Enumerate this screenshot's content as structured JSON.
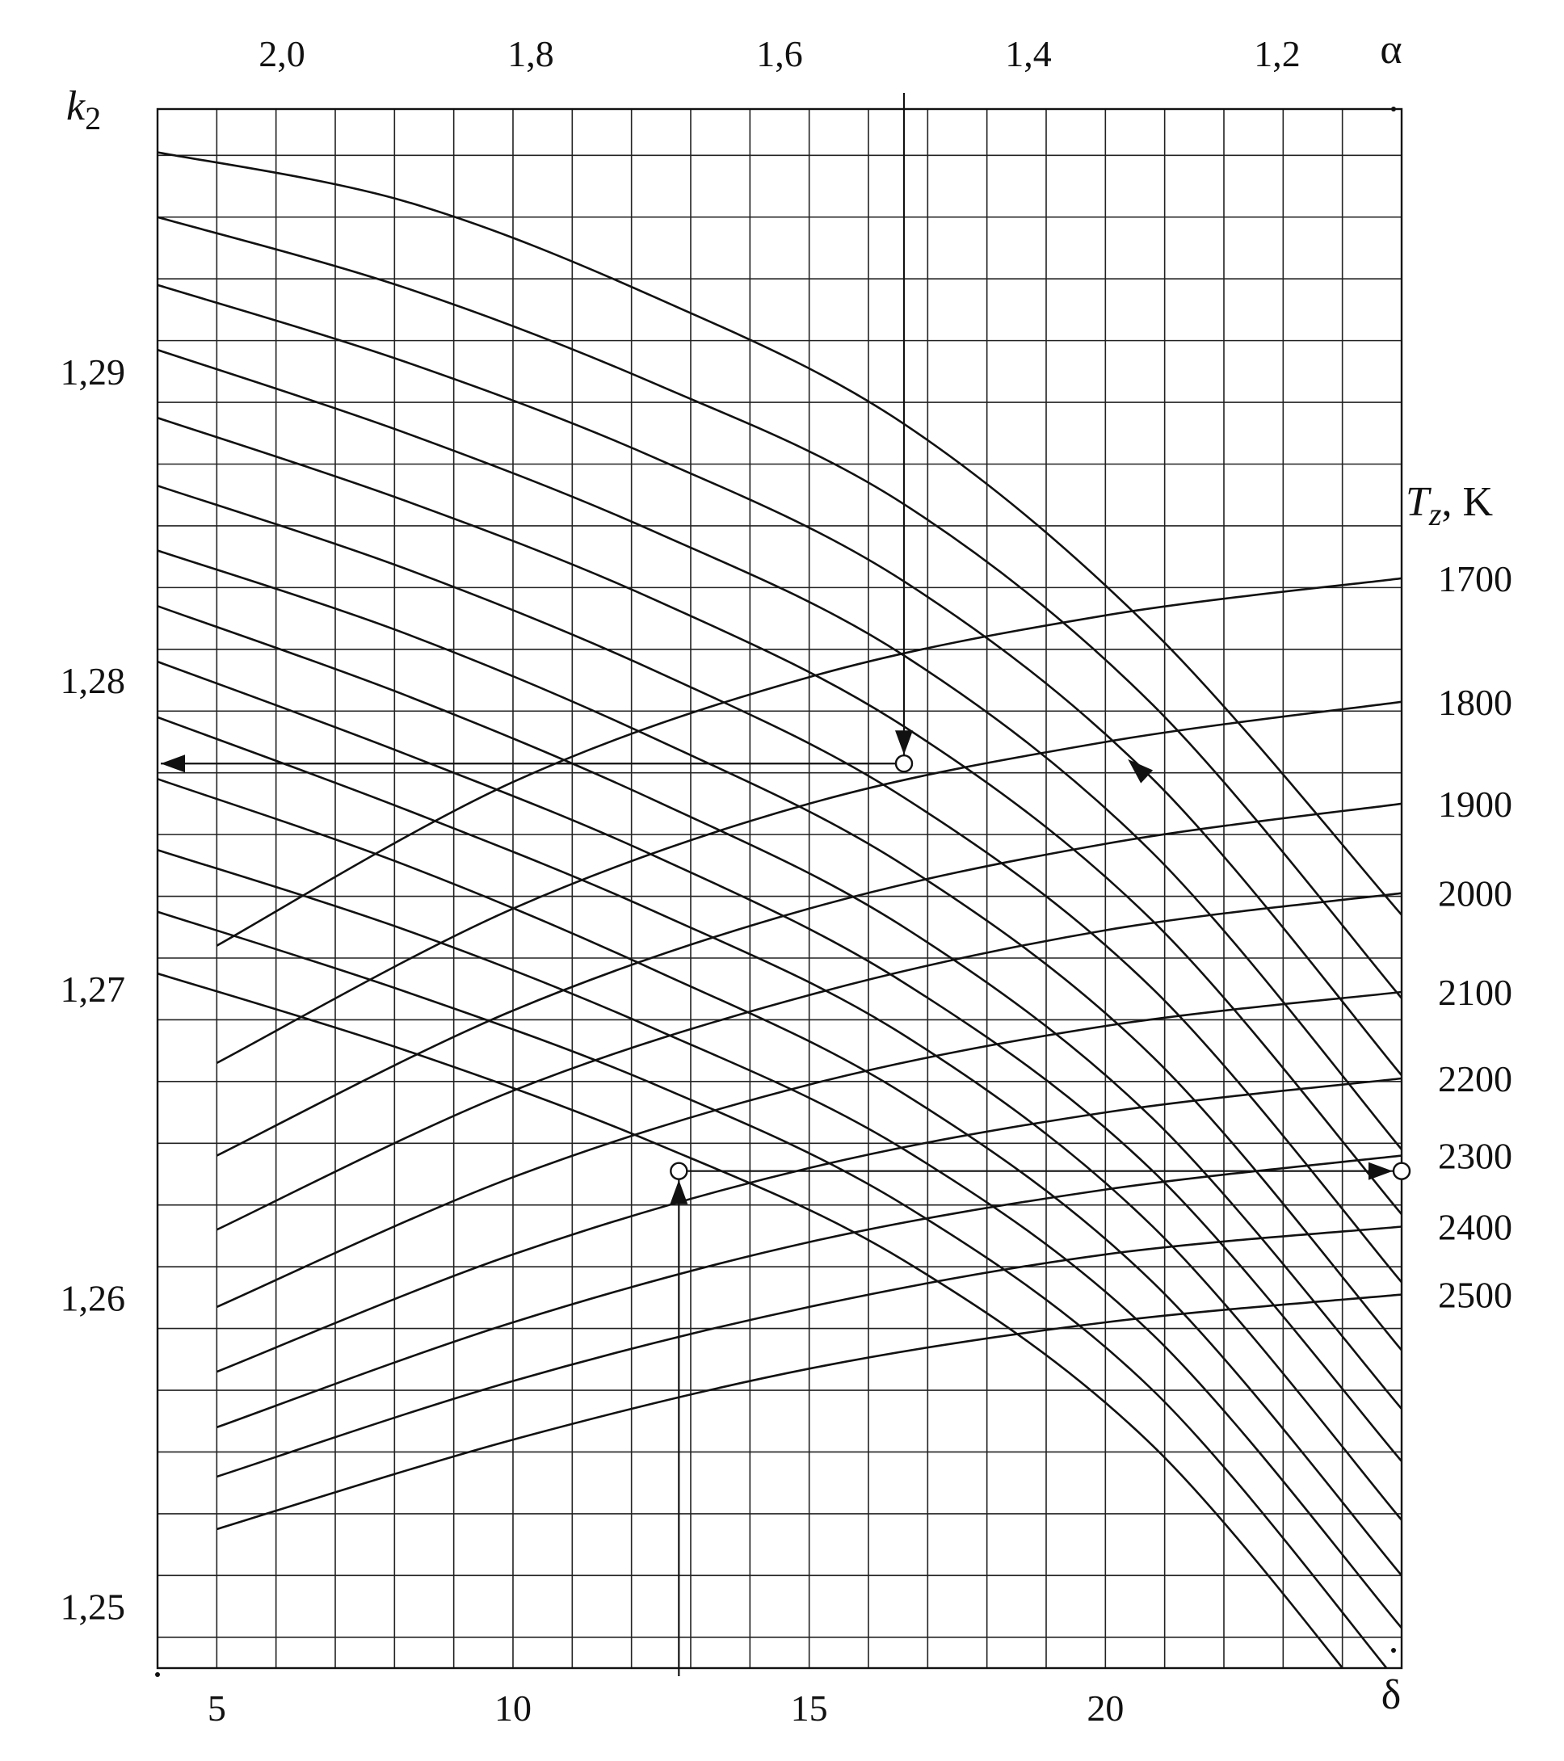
{
  "chart_data": {
    "type": "line",
    "title": "",
    "x_bottom": {
      "label": "δ",
      "ticks": [
        5,
        10,
        15,
        20
      ],
      "tick_labels": [
        "5",
        "10",
        "15",
        "20"
      ],
      "range": [
        4,
        25
      ]
    },
    "x_top": {
      "label": "α",
      "ticks": [
        2.0,
        1.8,
        1.6,
        1.4,
        1.2
      ],
      "tick_labels": [
        "2,0",
        "1,8",
        "1,6",
        "1,4",
        "1,2"
      ],
      "range": [
        2.1,
        1.1
      ]
    },
    "y_left": {
      "label": "k",
      "label_sub": "2",
      "ticks": [
        1.25,
        1.26,
        1.27,
        1.28,
        1.29
      ],
      "tick_labels": [
        "1,25",
        "1,26",
        "1,27",
        "1,28",
        "1,29"
      ],
      "range": [
        1.248,
        1.2985
      ]
    },
    "y_right": {
      "label": "T",
      "label_sub": "z",
      "label_unit": ", K",
      "ticks": [
        1700,
        1800,
        1900,
        2000,
        2100,
        2200,
        2300,
        2400,
        2500
      ],
      "tick_labels": [
        "1700",
        "1800",
        "1900",
        "2000",
        "2100",
        "2200",
        "2300",
        "2400",
        "2500"
      ],
      "tick_k2": [
        1.2833,
        1.2793,
        1.276,
        1.2731,
        1.2699,
        1.2671,
        1.2646,
        1.2623,
        1.2601
      ]
    },
    "grid": true,
    "alpha_curves": [
      {
        "values": [
          [
            2.1,
            1.2971
          ],
          [
            1.9,
            1.2955
          ],
          [
            1.7,
            1.2924
          ],
          [
            1.5,
            1.2883
          ],
          [
            1.3,
            1.2816
          ],
          [
            1.1,
            1.2724
          ]
        ]
      },
      {
        "values": [
          [
            2.1,
            1.295
          ],
          [
            1.9,
            1.2927
          ],
          [
            1.7,
            1.2896
          ],
          [
            1.5,
            1.2857
          ],
          [
            1.3,
            1.2792
          ],
          [
            1.1,
            1.2697
          ]
        ]
      },
      {
        "values": [
          [
            2.1,
            1.2928
          ],
          [
            1.9,
            1.2903
          ],
          [
            1.7,
            1.2872
          ],
          [
            1.5,
            1.2832
          ],
          [
            1.3,
            1.2768
          ],
          [
            1.1,
            1.2672
          ]
        ]
      },
      {
        "values": [
          [
            2.1,
            1.2907
          ],
          [
            1.9,
            1.288
          ],
          [
            1.7,
            1.2848
          ],
          [
            1.5,
            1.2808
          ],
          [
            1.3,
            1.2744
          ],
          [
            1.1,
            1.2648
          ]
        ]
      },
      {
        "values": [
          [
            2.1,
            1.2885
          ],
          [
            1.9,
            1.2858
          ],
          [
            1.7,
            1.2826
          ],
          [
            1.5,
            1.2785
          ],
          [
            1.3,
            1.2722
          ],
          [
            1.1,
            1.2627
          ]
        ]
      },
      {
        "values": [
          [
            2.1,
            1.2863
          ],
          [
            1.9,
            1.2836
          ],
          [
            1.7,
            1.2803
          ],
          [
            1.5,
            1.2762
          ],
          [
            1.3,
            1.27
          ],
          [
            1.1,
            1.2605
          ]
        ]
      },
      {
        "values": [
          [
            2.1,
            1.2842
          ],
          [
            1.9,
            1.2815
          ],
          [
            1.7,
            1.2781
          ],
          [
            1.5,
            1.274
          ],
          [
            1.3,
            1.2678
          ],
          [
            1.1,
            1.2583
          ]
        ]
      },
      {
        "values": [
          [
            2.1,
            1.2824
          ],
          [
            1.9,
            1.2795
          ],
          [
            1.7,
            1.2761
          ],
          [
            1.5,
            1.272
          ],
          [
            1.3,
            1.2658
          ],
          [
            1.1,
            1.2564
          ]
        ]
      },
      {
        "values": [
          [
            2.1,
            1.2806
          ],
          [
            1.9,
            1.2776
          ],
          [
            1.7,
            1.2743
          ],
          [
            1.5,
            1.2702
          ],
          [
            1.3,
            1.2641
          ],
          [
            1.1,
            1.2547
          ]
        ]
      },
      {
        "values": [
          [
            2.1,
            1.2788
          ],
          [
            1.9,
            1.2758
          ],
          [
            1.7,
            1.2725
          ],
          [
            1.5,
            1.2685
          ],
          [
            1.3,
            1.2623
          ],
          [
            1.1,
            1.2528
          ]
        ]
      },
      {
        "values": [
          [
            2.1,
            1.2768
          ],
          [
            1.9,
            1.274
          ],
          [
            1.7,
            1.2706
          ],
          [
            1.5,
            1.2666
          ],
          [
            1.3,
            1.2605
          ],
          [
            1.1,
            1.251
          ]
        ]
      },
      {
        "values": [
          [
            2.1,
            1.2745
          ],
          [
            1.9,
            1.2719
          ],
          [
            1.7,
            1.2687
          ],
          [
            1.5,
            1.2648
          ],
          [
            1.3,
            1.2588
          ],
          [
            1.1,
            1.2493
          ]
        ]
      },
      {
        "values": [
          [
            2.1,
            1.2725
          ],
          [
            1.9,
            1.2699
          ],
          [
            1.7,
            1.2669
          ],
          [
            1.5,
            1.263
          ],
          [
            1.3,
            1.257
          ],
          [
            1.1,
            1.2474
          ]
        ]
      },
      {
        "values": [
          [
            2.1,
            1.2705
          ],
          [
            1.9,
            1.268
          ],
          [
            1.7,
            1.265
          ],
          [
            1.5,
            1.2612
          ],
          [
            1.3,
            1.2552
          ],
          [
            1.1,
            1.2456
          ]
        ]
      }
    ],
    "tz_curves": [
      {
        "Tz": 1700,
        "values": [
          [
            5,
            1.2714
          ],
          [
            10,
            1.2767
          ],
          [
            15,
            1.2801
          ],
          [
            20,
            1.2821
          ],
          [
            25,
            1.2833
          ]
        ]
      },
      {
        "Tz": 1800,
        "values": [
          [
            5,
            1.2676
          ],
          [
            10,
            1.2726
          ],
          [
            15,
            1.276
          ],
          [
            20,
            1.278
          ],
          [
            25,
            1.2793
          ]
        ]
      },
      {
        "Tz": 1900,
        "values": [
          [
            5,
            1.2646
          ],
          [
            10,
            1.2693
          ],
          [
            15,
            1.2726
          ],
          [
            20,
            1.2747
          ],
          [
            25,
            1.276
          ]
        ]
      },
      {
        "Tz": 2000,
        "values": [
          [
            5,
            1.2622
          ],
          [
            10,
            1.2667
          ],
          [
            15,
            1.2698
          ],
          [
            20,
            1.2719
          ],
          [
            25,
            1.2731
          ]
        ]
      },
      {
        "Tz": 2100,
        "values": [
          [
            5,
            1.2597
          ],
          [
            10,
            1.2639
          ],
          [
            15,
            1.2669
          ],
          [
            20,
            1.2688
          ],
          [
            25,
            1.2699
          ]
        ]
      },
      {
        "Tz": 2200,
        "values": [
          [
            5,
            1.2576
          ],
          [
            10,
            1.2614
          ],
          [
            15,
            1.2642
          ],
          [
            20,
            1.266
          ],
          [
            25,
            1.2671
          ]
        ]
      },
      {
        "Tz": 2300,
        "values": [
          [
            5,
            1.2558
          ],
          [
            10,
            1.2592
          ],
          [
            15,
            1.2618
          ],
          [
            20,
            1.2635
          ],
          [
            25,
            1.2646
          ]
        ]
      },
      {
        "Tz": 2400,
        "values": [
          [
            5,
            1.2542
          ],
          [
            10,
            1.2573
          ],
          [
            15,
            1.2597
          ],
          [
            20,
            1.2614
          ],
          [
            25,
            1.2623
          ]
        ]
      },
      {
        "Tz": 2500,
        "values": [
          [
            5,
            1.2525
          ],
          [
            10,
            1.2554
          ],
          [
            15,
            1.2577
          ],
          [
            20,
            1.2592
          ],
          [
            25,
            1.2601
          ]
        ]
      }
    ],
    "example": {
      "alpha": 1.5,
      "k2": 1.2773,
      "delta": 12.8,
      "k2_second": 1.2641,
      "Tz_result": 2300
    }
  }
}
